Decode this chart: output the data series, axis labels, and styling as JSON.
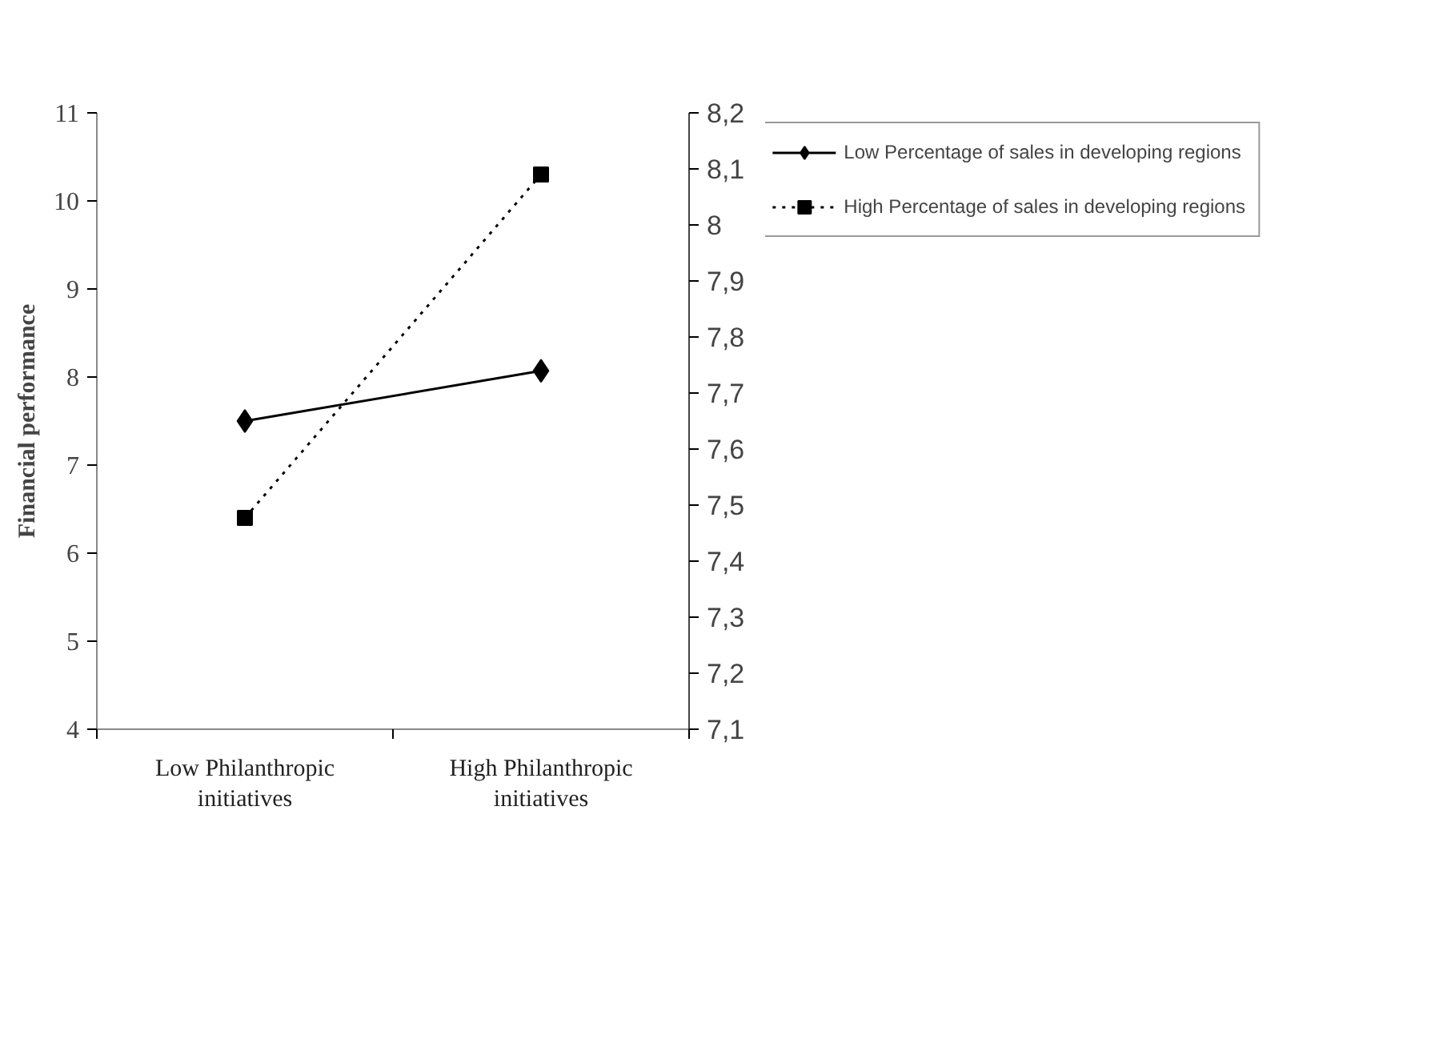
{
  "chart_data": {
    "type": "line",
    "ylabel": "Financial performance",
    "categories": [
      "Low Philanthropic initiatives",
      "High Philanthropic initiatives"
    ],
    "series": [
      {
        "name": "Low Percentage of sales in developing regions",
        "color": "#000000",
        "values": [
          7.5,
          8.07
        ],
        "marker": "diamond",
        "line_style": "solid"
      },
      {
        "name": "High Percentage of sales in developing regions",
        "color": "#000000",
        "values": [
          6.4,
          10.3
        ],
        "marker": "square",
        "line_style": "dotted"
      }
    ],
    "ylim": [
      4,
      11
    ],
    "yticks": [
      4,
      5,
      6,
      7,
      8,
      9,
      10,
      11
    ],
    "y2lim": [
      7.1,
      8.2
    ],
    "y2ticks": [
      {
        "value": 7.1,
        "label": "7,1"
      },
      {
        "value": 7.2,
        "label": "7,2"
      },
      {
        "value": 7.3,
        "label": "7,3"
      },
      {
        "value": 7.4,
        "label": "7,4"
      },
      {
        "value": 7.5,
        "label": "7,5"
      },
      {
        "value": 7.6,
        "label": "7,6"
      },
      {
        "value": 7.7,
        "label": "7,7"
      },
      {
        "value": 7.8,
        "label": "7,8"
      },
      {
        "value": 7.9,
        "label": "7,9"
      },
      {
        "value": 8,
        "label": "8"
      },
      {
        "value": 8.1,
        "label": "8,1"
      },
      {
        "value": 8.2,
        "label": "8,2"
      }
    ],
    "grid": false,
    "legend": "top right"
  }
}
